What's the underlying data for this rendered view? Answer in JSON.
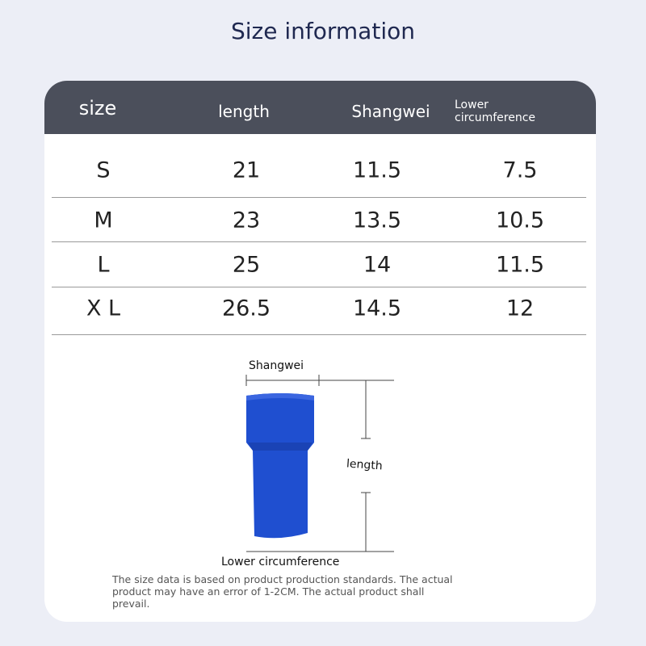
{
  "title": "Size information",
  "table": {
    "headers": [
      "size",
      "length",
      "Shangwei",
      "Lower circumference"
    ],
    "rows": [
      [
        "S",
        "21",
        "11.5",
        "7.5"
      ],
      [
        "M",
        "23",
        "13.5",
        "10.5"
      ],
      [
        "L",
        "25",
        "14",
        "11.5"
      ],
      [
        "X L",
        "26.5",
        "14.5",
        "12"
      ]
    ]
  },
  "diagram": {
    "top_label": "Shangwei",
    "side_label": "length",
    "bottom_label": "Lower circumference"
  },
  "note": [
    "The size data is based on product production standards. The actual",
    "product may have an error of 1-2CM. The actual product shall",
    "prevail."
  ]
}
